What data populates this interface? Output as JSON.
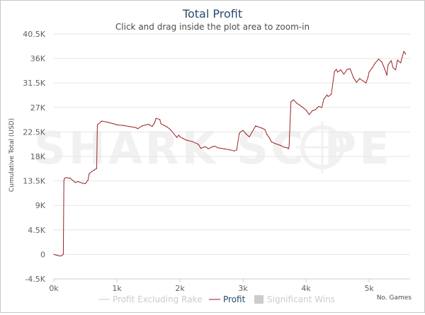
{
  "chart_data": {
    "type": "line",
    "title": "Total Profit",
    "subtitle": "Click and drag inside the plot area to zoom-in",
    "ylabel": "Cumulative Total (USD)",
    "xlabel": "No. Games",
    "watermark": "SHARK SC  PE",
    "xlim": [
      0,
      5650
    ],
    "ylim": [
      -4500,
      40500
    ],
    "x_ticks": [
      0,
      1000,
      2000,
      3000,
      4000,
      5000
    ],
    "x_tick_labels": [
      "0k",
      "1k",
      "2k",
      "3k",
      "4k",
      "5k"
    ],
    "y_ticks": [
      -4500,
      0,
      4500,
      9000,
      13500,
      18000,
      22500,
      27000,
      31500,
      36000,
      40500
    ],
    "y_tick_labels": [
      "-4.5K",
      "0",
      "4.5K",
      "9K",
      "13.5K",
      "18K",
      "22.5K",
      "27K",
      "31.5K",
      "36K",
      "40.5K"
    ],
    "grid": true,
    "legend_position": "bottom",
    "legend": [
      {
        "label": "Profit Excluding Rake",
        "kind": "line",
        "active": false
      },
      {
        "label": "Profit",
        "kind": "line",
        "active": true
      },
      {
        "label": "Significant Wins",
        "kind": "box",
        "active": false
      }
    ],
    "series": [
      {
        "name": "Profit",
        "color": "#9b2226",
        "x": [
          0,
          60,
          110,
          150,
          160,
          170,
          200,
          260,
          320,
          340,
          380,
          450,
          500,
          540,
          560,
          600,
          640,
          680,
          690,
          700,
          760,
          850,
          950,
          1000,
          1100,
          1200,
          1300,
          1330,
          1400,
          1500,
          1560,
          1600,
          1620,
          1680,
          1700,
          1800,
          1850,
          1900,
          1950,
          1980,
          2000,
          2050,
          2100,
          2200,
          2280,
          2300,
          2330,
          2400,
          2450,
          2500,
          2550,
          2600,
          2700,
          2800,
          2860,
          2900,
          2940,
          2960,
          3000,
          3050,
          3100,
          3200,
          3300,
          3350,
          3380,
          3420,
          3450,
          3500,
          3600,
          3650,
          3700,
          3720,
          3730,
          3760,
          3800,
          3850,
          3900,
          3950,
          4000,
          4050,
          4100,
          4150,
          4200,
          4250,
          4280,
          4300,
          4330,
          4350,
          4400,
          4450,
          4480,
          4500,
          4550,
          4600,
          4650,
          4700,
          4750,
          4780,
          4800,
          4850,
          4900,
          4950,
          4980,
          5000,
          5050,
          5080,
          5100,
          5150,
          5200,
          5250,
          5280,
          5300,
          5350,
          5380,
          5420,
          5450,
          5500,
          5550,
          5580
        ],
        "y": [
          0,
          -200,
          -300,
          0,
          13500,
          14000,
          14100,
          14000,
          13400,
          13200,
          13400,
          13100,
          13000,
          13600,
          14800,
          15200,
          15500,
          15800,
          23700,
          23900,
          24500,
          24300,
          24000,
          23800,
          23700,
          23500,
          23300,
          23100,
          23600,
          23900,
          23500,
          24200,
          25000,
          24800,
          24000,
          23400,
          22900,
          22200,
          21500,
          21900,
          21600,
          21300,
          21000,
          20700,
          20300,
          20100,
          19500,
          19800,
          19400,
          19700,
          19900,
          19600,
          19400,
          19200,
          19000,
          19200,
          22200,
          22500,
          22800,
          22100,
          21600,
          23600,
          23200,
          22900,
          22000,
          21400,
          20700,
          20400,
          20000,
          19700,
          19600,
          19400,
          19800,
          28000,
          28400,
          27800,
          27400,
          27000,
          26500,
          25700,
          26400,
          26600,
          27200,
          27000,
          28500,
          28800,
          29300,
          29000,
          29400,
          33600,
          34000,
          33500,
          33900,
          33100,
          34000,
          34100,
          32500,
          32000,
          31600,
          32300,
          31900,
          31500,
          32500,
          33500,
          34300,
          34900,
          35200,
          35900,
          35400,
          34000,
          32900,
          34800,
          35600,
          34300,
          33900,
          35700,
          35200,
          37300,
          36800
        ]
      }
    ]
  }
}
